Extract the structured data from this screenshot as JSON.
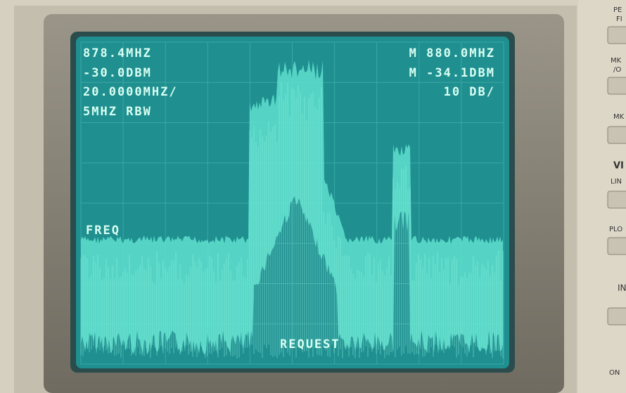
{
  "screen": {
    "top_left": [
      "878.4MHZ",
      "-30.0DBM",
      "20.0000MHZ/",
      "5MHZ RBW"
    ],
    "top_right": [
      "M 880.0MHZ",
      "M -34.1DBM",
      "10 DB/"
    ],
    "freq_label": "FREQ",
    "request_label": "REQUEST"
  },
  "side_panel": [
    "PE",
    "FI",
    "MK",
    "/O",
    "MK",
    "VI",
    "LIN",
    "PLO",
    "IN",
    "ON"
  ]
}
